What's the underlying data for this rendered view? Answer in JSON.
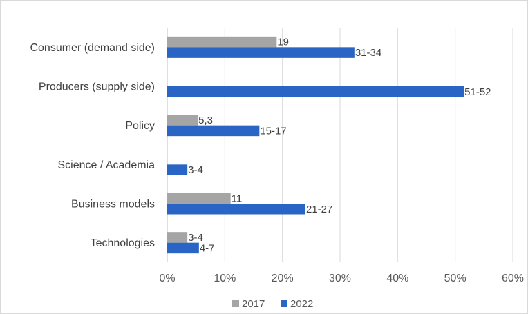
{
  "chart_data": {
    "type": "bar",
    "orientation": "horizontal",
    "categories": [
      "Consumer (demand side)",
      "Producers (supply side)",
      "Policy",
      "Science / Academia",
      "Business models",
      "Technologies"
    ],
    "series": [
      {
        "name": "2017",
        "color": "#a5a5a5",
        "values": [
          19,
          null,
          5.3,
          null,
          11,
          3.5
        ],
        "labels": [
          "19",
          "",
          "5,3",
          "",
          "11",
          "3-4"
        ]
      },
      {
        "name": "2022",
        "color": "#2a64c4",
        "values": [
          32.5,
          51.5,
          16,
          3.5,
          24,
          5.5
        ],
        "labels": [
          "31-34",
          "51-52",
          "15-17",
          "3-4",
          "21-27",
          "4-7"
        ]
      }
    ],
    "x_ticks": [
      "0%",
      "10%",
      "20%",
      "30%",
      "40%",
      "50%",
      "60%"
    ],
    "xlim": [
      0,
      60
    ],
    "grid": "vertical",
    "legend_position": "bottom"
  }
}
